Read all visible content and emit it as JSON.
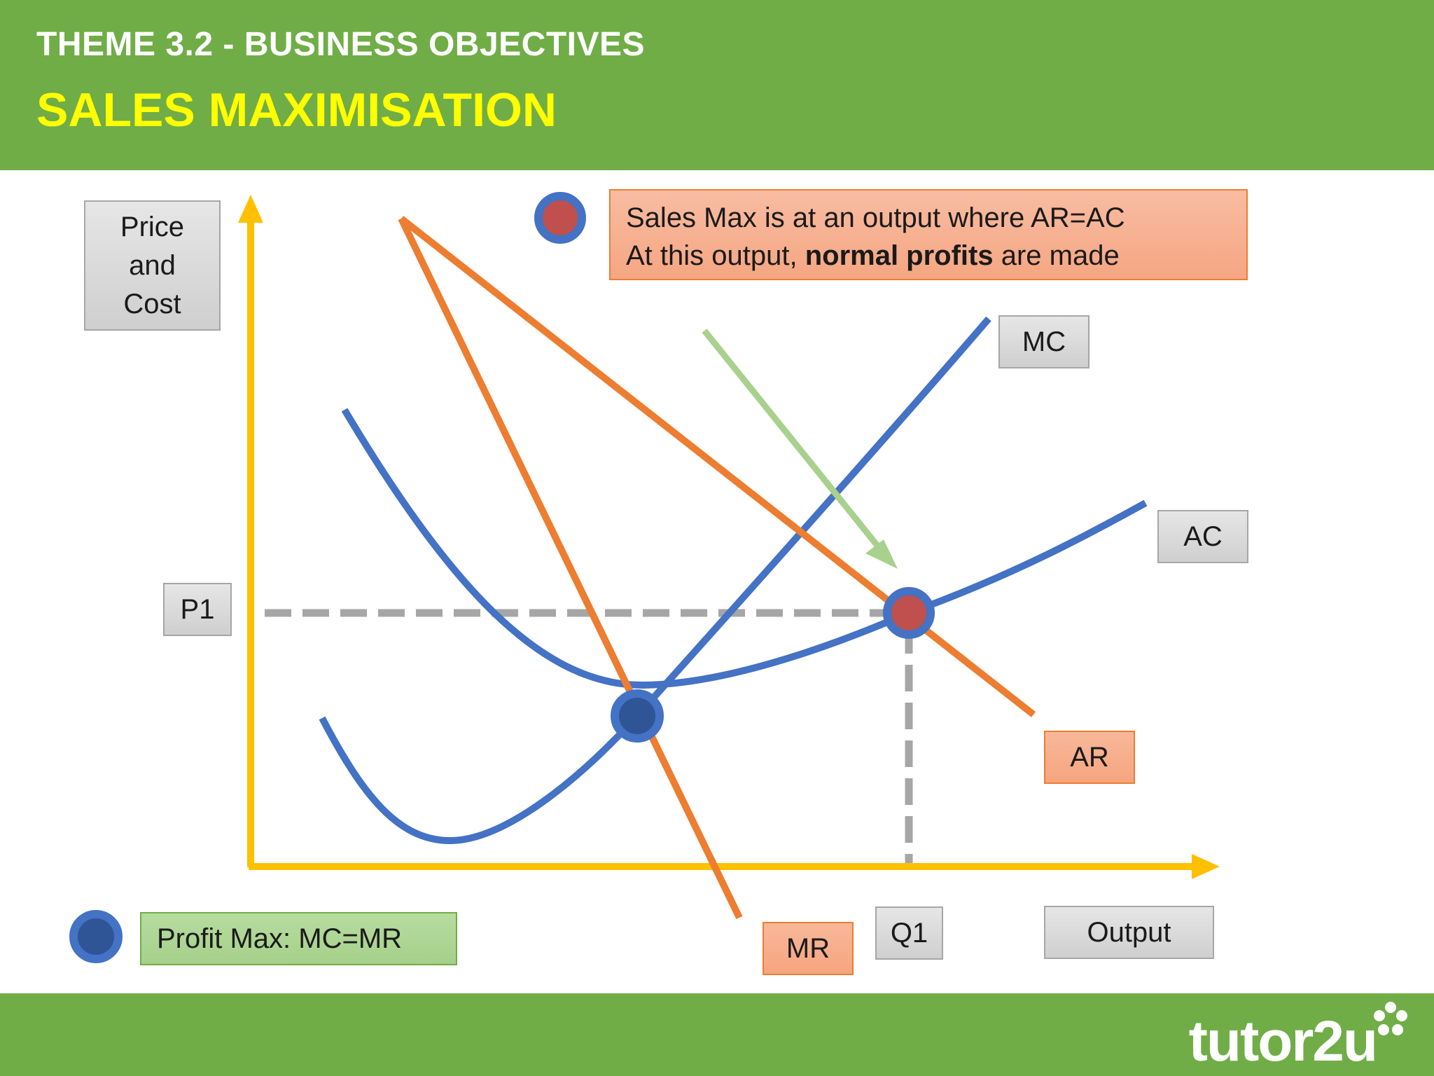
{
  "header": {
    "theme": "THEME 3.2 - BUSINESS OBJECTIVES",
    "title": "SALES MAXIMISATION"
  },
  "labels": {
    "y_axis": "Price\nand\nCost",
    "x_axis": "Output",
    "p1": "P1",
    "q1": "Q1",
    "mc": "MC",
    "ac": "AC",
    "ar": "AR",
    "mr": "MR"
  },
  "sales_max_note": {
    "line1": "Sales Max is at an output where AR=AC",
    "line2_pre": "At this output, ",
    "line2_bold": "normal profits",
    "line2_post": " are made"
  },
  "profit_max_note": "Profit Max: MC=MR",
  "brand": "tutor2u",
  "colors": {
    "header_green": "#70ad47",
    "title_yellow": "#ffff00",
    "axis": "#ffc000",
    "cost_curves": "#4472c4",
    "revenue_curves": "#ed7d31",
    "sales_max_point": "#c0504d",
    "profit_max_point": "#2f5597",
    "arrow": "#a9d18e",
    "dashed_guides": "#a6a6a6"
  }
}
